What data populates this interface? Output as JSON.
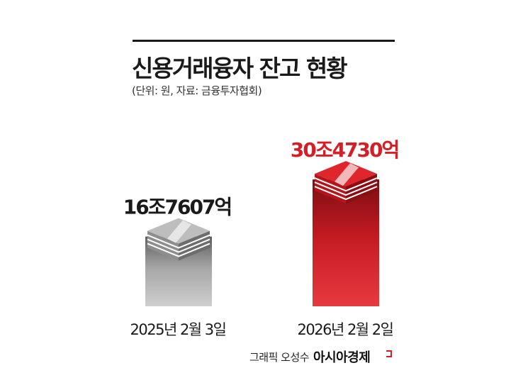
{
  "title": "신용거래융자 잔고 현황",
  "subtitle": "(단위: 원, 자료: 금융투자협회)",
  "credit": {
    "byline": "그래픽 오성수",
    "brand": "아시아경제"
  },
  "colors": {
    "accent": "#d41f26",
    "gray_bar": "#a9a9a9",
    "text": "#1a1a1a"
  },
  "chart_data": {
    "type": "bar",
    "title": "신용거래융자 잔고 현황",
    "unit": "원",
    "source": "금융투자협회",
    "categories": [
      "2025년 2월 3일",
      "2026년 2월 2일"
    ],
    "values": [
      16.7607,
      30.473
    ],
    "value_labels": [
      "16조7607억",
      "30조4730억"
    ],
    "bar_colors": [
      "#a9a9a9",
      "#d41f26"
    ],
    "ylim": [
      0,
      31
    ],
    "grid": false,
    "legend": "none"
  }
}
